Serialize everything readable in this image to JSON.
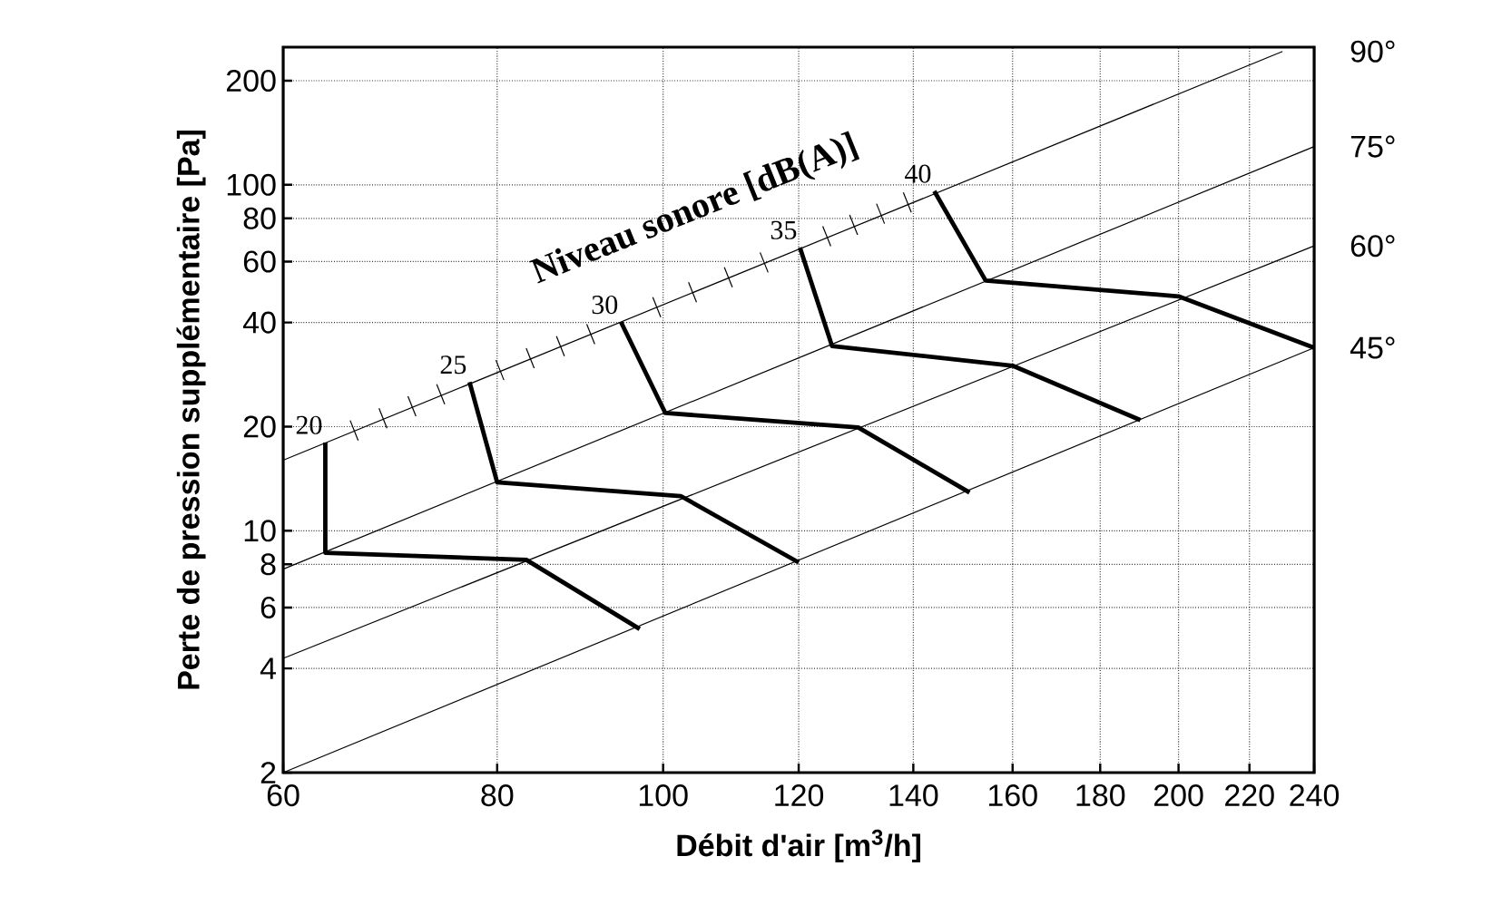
{
  "chart_data": {
    "type": "line",
    "xlabel": "Débit d'air [m$^{3}$/h]",
    "ylabel": "Perte de pression supplémentaire [Pa]",
    "log": "xy",
    "grid": true,
    "xlim": [
      60,
      240
    ],
    "ylim": [
      2,
      250
    ],
    "xticks": [
      60,
      80,
      100,
      120,
      140,
      160,
      180,
      200,
      220,
      240
    ],
    "yticks": [
      2,
      4,
      6,
      8,
      10,
      20,
      40,
      60,
      80,
      100,
      200
    ],
    "annotations": [
      "Niveau sonore [dB(A)]",
      {
        "text": "20",
        "x": 63.5,
        "y": 18.0
      },
      {
        "text": "25",
        "x": 77.1,
        "y": 26.9
      },
      {
        "text": "30",
        "x": 94.5,
        "y": 40.1
      },
      {
        "text": "35",
        "x": 120.2,
        "y": 65.9
      },
      {
        "text": "40",
        "x": 144,
        "y": 95.9
      }
    ],
    "series": [
      {
        "name": "90°",
        "color": "#000000",
        "x": [
          60,
          230
        ],
        "values": [
          16.0,
          243
        ]
      },
      {
        "name": "75°",
        "color": "#000000",
        "x": [
          60,
          240
        ],
        "values": [
          7.75,
          129
        ]
      },
      {
        "name": "60°",
        "color": "#000000",
        "x": [
          60,
          240
        ],
        "values": [
          4.28,
          66.6
        ]
      },
      {
        "name": "45°",
        "color": "#000000",
        "x": [
          60,
          240
        ],
        "values": [
          2,
          33.8
        ]
      },
      {
        "color": "#000000",
        "x": [
          63.5,
          63.5,
          83.2,
          96.9
        ],
        "values": [
          18.0,
          8.64,
          8.24,
          5.2
        ]
      },
      {
        "color": "#000000",
        "x": [
          77.1,
          80,
          102.4,
          120
        ],
        "values": [
          26.9,
          13.8,
          12.6,
          8.1
        ]
      },
      {
        "color": "#000000",
        "x": [
          94.5,
          100.3,
          130,
          151
        ],
        "values": [
          40.1,
          21.9,
          19.9,
          12.9
        ]
      },
      {
        "color": "#000000",
        "x": [
          120.2,
          125.5,
          160,
          190
        ],
        "values": [
          65.9,
          34.2,
          30,
          20.9
        ]
      },
      {
        "color": "#000000",
        "x": [
          144,
          154.3,
          200,
          240
        ],
        "values": [
          95.9,
          52.9,
          47.6,
          33.8
        ]
      }
    ]
  }
}
